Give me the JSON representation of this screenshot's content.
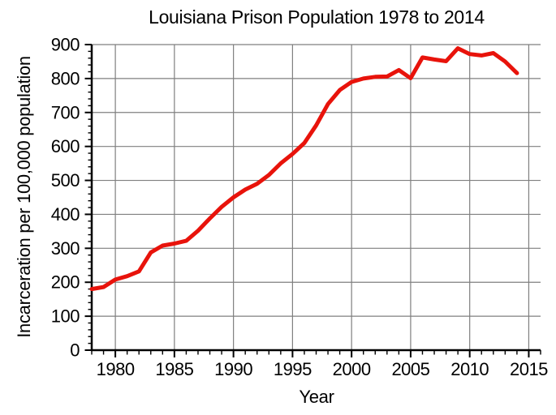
{
  "window": {
    "background_color": "#ffffff"
  },
  "chart_data": {
    "type": "line",
    "title": "Louisiana Prison Population 1978 to 2014",
    "xlabel": "Year",
    "ylabel": "Incarceration per 100,000 population",
    "x": [
      1978,
      1979,
      1980,
      1981,
      1982,
      1983,
      1984,
      1985,
      1986,
      1987,
      1988,
      1989,
      1990,
      1991,
      1992,
      1993,
      1994,
      1995,
      1996,
      1997,
      1998,
      1999,
      2000,
      2001,
      2002,
      2003,
      2004,
      2005,
      2006,
      2007,
      2008,
      2009,
      2010,
      2011,
      2012,
      2013,
      2014
    ],
    "series": [
      {
        "name": "Incarceration rate per 100,000 population",
        "values": [
          180,
          186,
          208,
          218,
          232,
          288,
          308,
          314,
          322,
          352,
          388,
          422,
          450,
          473,
          490,
          516,
          550,
          578,
          610,
          662,
          725,
          766,
          790,
          800,
          805,
          806,
          825,
          801,
          862,
          856,
          851,
          889,
          872,
          868,
          875,
          850,
          816
        ]
      }
    ],
    "xlim": [
      1978,
      2016
    ],
    "ylim": [
      0,
      900
    ],
    "x_tick_labels": [
      "1980",
      "1985",
      "1990",
      "1995",
      "2000",
      "2005",
      "2010",
      "2015"
    ],
    "y_tick_labels": [
      "0",
      "100",
      "200",
      "300",
      "400",
      "500",
      "600",
      "700",
      "800",
      "900"
    ],
    "x_minor_tick_step": 1,
    "y_minor_tick_step": 20,
    "grid": true,
    "legend": "none",
    "line_color": "#e8130b",
    "line_width": 5,
    "grid_color": "#7f7f7f",
    "axis_color": "#000000",
    "text_color": "#000000"
  }
}
